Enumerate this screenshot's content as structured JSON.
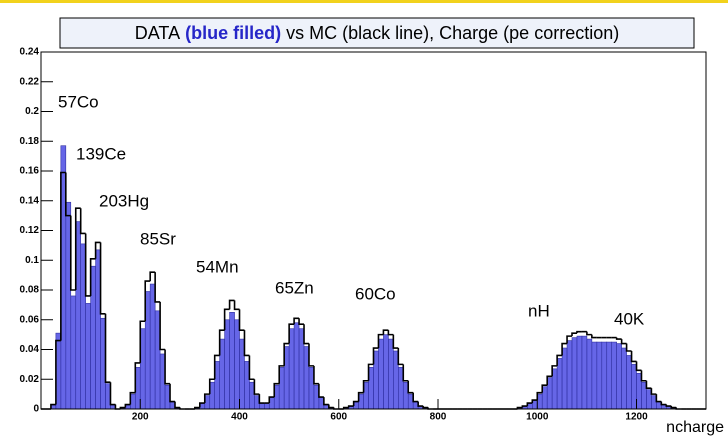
{
  "chart_data": {
    "type": "histogram",
    "title_parts": [
      "DATA",
      "(blue filled)",
      "vs MC (black line), Charge (pe correction)"
    ],
    "xlabel": "ncharge",
    "annotations": [
      "57Co",
      "139Ce",
      "203Hg",
      "85Sr",
      "54Mn",
      "65Zn",
      "60Co",
      "nH",
      "40K"
    ],
    "xlim": [
      0,
      1340
    ],
    "ylim": [
      0,
      0.24
    ],
    "xticks": [
      200,
      400,
      600,
      800,
      1000,
      1200
    ],
    "yticks": [
      0,
      0.02,
      0.04,
      0.06,
      0.08,
      0.1,
      0.12,
      0.14,
      0.16,
      0.18,
      0.2,
      0.22,
      0.24
    ],
    "bins": [
      0,
      10,
      20,
      30,
      40,
      50,
      60,
      70,
      80,
      90,
      100,
      110,
      120,
      130,
      140,
      150,
      160,
      170,
      180,
      190,
      200,
      210,
      220,
      230,
      240,
      250,
      260,
      270,
      280,
      290,
      300,
      310,
      320,
      330,
      340,
      350,
      360,
      370,
      380,
      390,
      400,
      410,
      420,
      430,
      440,
      450,
      460,
      470,
      480,
      490,
      500,
      510,
      520,
      530,
      540,
      550,
      560,
      570,
      580,
      590,
      600,
      610,
      620,
      630,
      640,
      650,
      660,
      670,
      680,
      690,
      700,
      710,
      720,
      730,
      740,
      750,
      760,
      770,
      780,
      790,
      800,
      810,
      820,
      830,
      840,
      850,
      860,
      870,
      880,
      890,
      900,
      910,
      920,
      930,
      940,
      950,
      960,
      970,
      980,
      990,
      1000,
      1010,
      1020,
      1030,
      1040,
      1050,
      1060,
      1070,
      1080,
      1090,
      1100,
      1110,
      1120,
      1130,
      1140,
      1150,
      1160,
      1170,
      1180,
      1190,
      1200,
      1210,
      1220,
      1230,
      1240,
      1250,
      1260,
      1270,
      1280,
      1290,
      1300,
      1310,
      1320,
      1330,
      1340
    ],
    "series": [
      {
        "style": "filled",
        "color": "#4b4be3",
        "values": [
          0,
          0,
          0.003,
          0.051,
          0.177,
          0.139,
          0.076,
          0.126,
          0.111,
          0.071,
          0.096,
          0.107,
          0.061,
          0.017,
          0.003,
          0,
          0.001,
          0.003,
          0.01,
          0.028,
          0.054,
          0.079,
          0.084,
          0.066,
          0.037,
          0.016,
          0.005,
          0.001,
          0,
          0,
          0,
          0.001,
          0.004,
          0.009,
          0.018,
          0.032,
          0.047,
          0.06,
          0.065,
          0.06,
          0.047,
          0.032,
          0.018,
          0.009,
          0.004,
          0.004,
          0.008,
          0.016,
          0.028,
          0.042,
          0.054,
          0.058,
          0.054,
          0.042,
          0.028,
          0.016,
          0.008,
          0.003,
          0.001,
          0,
          0,
          0.001,
          0.002,
          0.005,
          0.01,
          0.018,
          0.028,
          0.039,
          0.047,
          0.05,
          0.047,
          0.039,
          0.028,
          0.018,
          0.01,
          0.005,
          0.002,
          0.001,
          0,
          0,
          0,
          0,
          0,
          0,
          0,
          0,
          0,
          0,
          0,
          0,
          0,
          0,
          0,
          0,
          0,
          0,
          0.001,
          0.002,
          0.004,
          0.006,
          0.01,
          0.015,
          0.021,
          0.027,
          0.034,
          0.041,
          0.046,
          0.048,
          0.049,
          0.049,
          0.047,
          0.045,
          0.045,
          0.045,
          0.045,
          0.045,
          0.044,
          0.041,
          0.036,
          0.03,
          0.024,
          0.018,
          0.013,
          0.009,
          0.005,
          0.003,
          0.002,
          0.001,
          0,
          0,
          0,
          0,
          0,
          0
        ]
      },
      {
        "style": "line",
        "color": "#000000",
        "values": [
          0,
          0,
          0.003,
          0.046,
          0.159,
          0.13,
          0.08,
          0.135,
          0.118,
          0.076,
          0.101,
          0.112,
          0.064,
          0.018,
          0.003,
          0,
          0.001,
          0.003,
          0.011,
          0.031,
          0.059,
          0.086,
          0.092,
          0.072,
          0.04,
          0.017,
          0.005,
          0.001,
          0,
          0,
          0,
          0.001,
          0.004,
          0.01,
          0.02,
          0.036,
          0.053,
          0.067,
          0.073,
          0.067,
          0.053,
          0.036,
          0.02,
          0.01,
          0.004,
          0.004,
          0.008,
          0.017,
          0.029,
          0.044,
          0.057,
          0.061,
          0.057,
          0.044,
          0.029,
          0.017,
          0.008,
          0.003,
          0.001,
          0,
          0,
          0.001,
          0.002,
          0.005,
          0.011,
          0.019,
          0.03,
          0.041,
          0.05,
          0.053,
          0.05,
          0.041,
          0.03,
          0.019,
          0.011,
          0.005,
          0.002,
          0.001,
          0,
          0,
          0,
          0,
          0,
          0,
          0,
          0,
          0,
          0,
          0,
          0,
          0,
          0,
          0,
          0,
          0,
          0,
          0.001,
          0.002,
          0.004,
          0.006,
          0.011,
          0.016,
          0.022,
          0.029,
          0.036,
          0.044,
          0.049,
          0.051,
          0.052,
          0.052,
          0.05,
          0.048,
          0.048,
          0.048,
          0.048,
          0.048,
          0.047,
          0.044,
          0.039,
          0.032,
          0.026,
          0.019,
          0.014,
          0.01,
          0.005,
          0.003,
          0.002,
          0.001,
          0,
          0,
          0,
          0,
          0,
          0
        ]
      }
    ]
  }
}
